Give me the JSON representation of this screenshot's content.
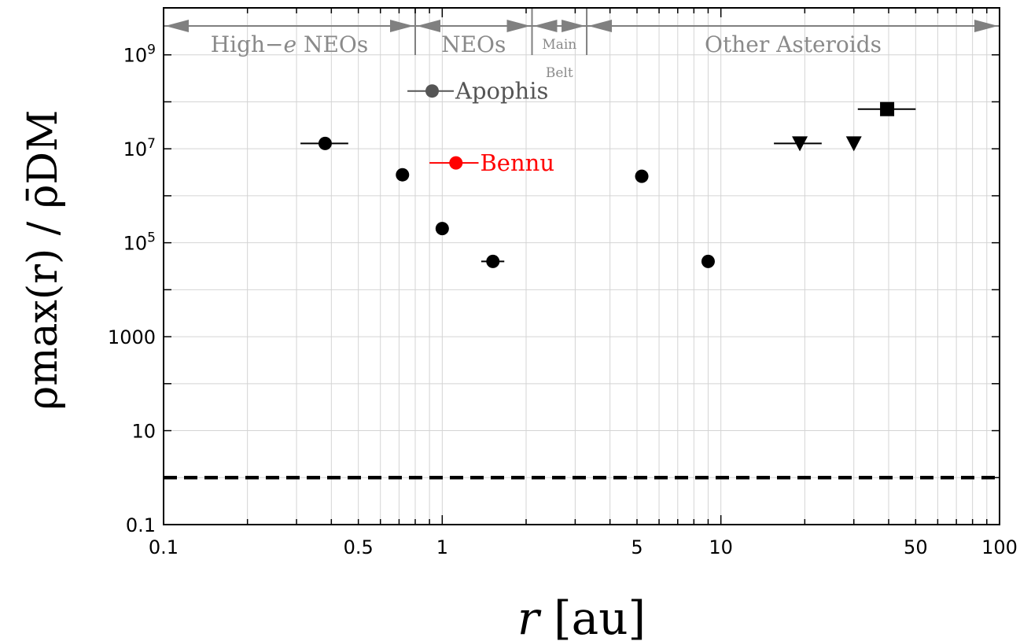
{
  "chart_data": {
    "type": "scatter",
    "title": "",
    "xlabel": "r",
    "xlabel_unit": "[au]",
    "ylabel": "ρmax(r) / ρ̄DM",
    "xscale": "log",
    "yscale": "log",
    "xlim": [
      0.1,
      100
    ],
    "ylim": [
      0.1,
      10000000000
    ],
    "grid": true,
    "x_ticks": [
      {
        "value": 0.1,
        "label": "0.1"
      },
      {
        "value": 0.5,
        "label": "0.5"
      },
      {
        "value": 1,
        "label": "1"
      },
      {
        "value": 5,
        "label": "5"
      },
      {
        "value": 10,
        "label": "10"
      },
      {
        "value": 50,
        "label": "50"
      },
      {
        "value": 100,
        "label": "100"
      }
    ],
    "y_ticks": [
      {
        "value": 0.1,
        "label": "0.1"
      },
      {
        "value": 10,
        "label": "10"
      },
      {
        "value": 1000,
        "label": "1000"
      },
      {
        "value": 100000,
        "label": "10",
        "exp": "5"
      },
      {
        "value": 10000000,
        "label": "10",
        "exp": "7"
      },
      {
        "value": 1000000000,
        "label": "10",
        "exp": "9"
      }
    ],
    "reference_line": {
      "y": 1,
      "style": "dashed",
      "color": "#000000"
    },
    "regions": [
      {
        "label_main": "High−",
        "label_var": "e",
        "label_rest": " NEOs",
        "x_start": 0.1,
        "x_end": 0.8
      },
      {
        "label": "NEOs",
        "x_start": 0.8,
        "x_end": 2.1
      },
      {
        "label_line1": "Main",
        "label_line2": "Belt",
        "x_start": 2.1,
        "x_end": 3.3
      },
      {
        "label": "Other Asteroids",
        "x_start": 3.3,
        "x_end": 100
      }
    ],
    "region_color": "#808080",
    "points": [
      {
        "x": 0.38,
        "y": 13000000,
        "xerr": [
          0.31,
          0.46
        ],
        "marker": "circle",
        "color": "#000000"
      },
      {
        "x": 0.72,
        "y": 2800000,
        "marker": "circle",
        "color": "#000000"
      },
      {
        "x": 1.0,
        "y": 200000,
        "marker": "circle",
        "color": "#000000"
      },
      {
        "x": 1.52,
        "y": 40000,
        "xerr": [
          1.38,
          1.67
        ],
        "marker": "circle",
        "color": "#000000"
      },
      {
        "x": 5.2,
        "y": 2600000,
        "marker": "circle",
        "color": "#000000"
      },
      {
        "x": 9.0,
        "y": 40000,
        "xerr": [
          8.8,
          9.2
        ],
        "marker": "circle",
        "color": "#000000"
      },
      {
        "x": 19.2,
        "y": 13000000,
        "xerr": [
          15.5,
          23.0
        ],
        "marker": "triangle-down",
        "color": "#000000"
      },
      {
        "x": 30.0,
        "y": 13000000,
        "marker": "triangle-down",
        "color": "#000000"
      },
      {
        "x": 39.5,
        "y": 70000000,
        "xerr": [
          31.0,
          50.0
        ],
        "marker": "square",
        "color": "#000000"
      }
    ],
    "named_points": [
      {
        "label": "Apophis",
        "x": 0.92,
        "y": 170000000,
        "xerr": [
          0.75,
          1.1
        ],
        "color": "#555555"
      },
      {
        "label": "Bennu",
        "x": 1.12,
        "y": 5000000,
        "xerr": [
          0.9,
          1.35
        ],
        "color": "#ff0000"
      }
    ]
  }
}
